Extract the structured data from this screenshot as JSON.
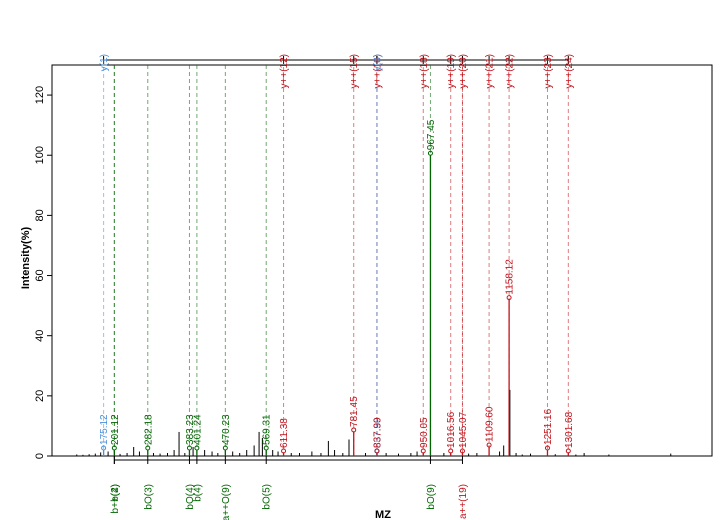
{
  "chart_data": {
    "type": "bar",
    "title": "",
    "xlabel": "MZ",
    "ylabel": "Intensity(%)",
    "xlim": [
      50,
      1650
    ],
    "ylim": [
      0,
      130
    ],
    "yticks": [
      0,
      20,
      40,
      60,
      80,
      100,
      120
    ],
    "grid": false,
    "colors": {
      "y_ion": "#4a90d9",
      "b_ion": "#006400",
      "y_dbl": "#c0141c",
      "unmatched": "#000000"
    },
    "top_annotations": [
      {
        "label": "y(1)",
        "mz": 175.12,
        "color": "#4a90d9"
      },
      {
        "label": "y++(12)",
        "mz": 611.38,
        "color": "#c0141c"
      },
      {
        "label": "y++(15)",
        "mz": 781.45,
        "color": "#c0141c"
      },
      {
        "label": "y++(16)",
        "mz": 837.99,
        "color": "#c0141c"
      },
      {
        "label": "y(3)",
        "mz": 837.3,
        "color": "#4a90d9"
      },
      {
        "label": "y++(18)",
        "mz": 950.05,
        "color": "#c0141c"
      },
      {
        "label": "y++(19)",
        "mz": 1016.56,
        "color": "#c0141c"
      },
      {
        "label": "y++(20)",
        "mz": 1045.07,
        "color": "#c0141c"
      },
      {
        "label": "y++(21)",
        "mz": 1109.6,
        "color": "#c0141c"
      },
      {
        "label": "y++(22)",
        "mz": 1158.12,
        "color": "#c0141c"
      },
      {
        "label": "y++(23)",
        "mz": 1251.16,
        "color": "#c0141c"
      },
      {
        "label": "y++(24)",
        "mz": 1301.68,
        "color": "#c0141c"
      }
    ],
    "bottom_annotations": [
      {
        "label": "b(2)",
        "mz": 201.12,
        "color": "#006400"
      },
      {
        "label": "b++(4)",
        "mz": 201.12,
        "color": "#006400"
      },
      {
        "label": "bO(3)",
        "mz": 282.18,
        "color": "#006400"
      },
      {
        "label": "bO(4)",
        "mz": 383.23,
        "color": "#006400"
      },
      {
        "label": "b(4)",
        "mz": 401.24,
        "color": "#006400"
      },
      {
        "label": "a++O(9)",
        "mz": 470.23,
        "color": "#006400"
      },
      {
        "label": "bO(5)",
        "mz": 569.31,
        "color": "#006400"
      },
      {
        "label": "bO(9)",
        "mz": 967.45,
        "color": "#006400"
      },
      {
        "label": "a++(19)",
        "mz": 1045.07,
        "color": "#c0141c"
      }
    ],
    "peaks_labeled": [
      {
        "mz": 175.12,
        "label": "175.12",
        "intensity": 2.0,
        "color": "#4a90d9"
      },
      {
        "mz": 201.12,
        "label": "201.12",
        "intensity": 2.0,
        "color": "#006400"
      },
      {
        "mz": 282.18,
        "label": "282.18",
        "intensity": 2.0,
        "color": "#006400"
      },
      {
        "mz": 383.23,
        "label": "383.23",
        "intensity": 2.0,
        "color": "#006400"
      },
      {
        "mz": 401.24,
        "label": "401.24",
        "intensity": 2.0,
        "color": "#006400"
      },
      {
        "mz": 470.23,
        "label": "470.23",
        "intensity": 2.0,
        "color": "#006400"
      },
      {
        "mz": 569.31,
        "label": "569.31",
        "intensity": 2.0,
        "color": "#006400"
      },
      {
        "mz": 611.38,
        "label": "611.38",
        "intensity": 1.0,
        "color": "#c0141c"
      },
      {
        "mz": 781.45,
        "label": "781.45",
        "intensity": 8.0,
        "color": "#c0141c"
      },
      {
        "mz": 837.3,
        "label": "837.30",
        "intensity": 1.0,
        "color": "#4a90d9"
      },
      {
        "mz": 837.99,
        "label": "837.99",
        "intensity": 1.0,
        "color": "#c0141c"
      },
      {
        "mz": 950.05,
        "label": "950.05",
        "intensity": 1.0,
        "color": "#c0141c"
      },
      {
        "mz": 967.45,
        "label": "967.45",
        "intensity": 100.0,
        "color": "#006400"
      },
      {
        "mz": 1016.56,
        "label": "1016.56",
        "intensity": 1.0,
        "color": "#c0141c"
      },
      {
        "mz": 1045.07,
        "label": "1045.07",
        "intensity": 1.0,
        "color": "#c0141c"
      },
      {
        "mz": 1109.6,
        "label": "1109.60",
        "intensity": 3.0,
        "color": "#c0141c"
      },
      {
        "mz": 1158.12,
        "label": "1158.12",
        "intensity": 52.0,
        "color": "#c0141c"
      },
      {
        "mz": 1251.16,
        "label": "1251.16",
        "intensity": 2.0,
        "color": "#c0141c"
      },
      {
        "mz": 1301.68,
        "label": "1301.68",
        "intensity": 1.0,
        "color": "#c0141c"
      }
    ],
    "peaks_unlabeled": [
      {
        "mz": 110,
        "intensity": 0.5
      },
      {
        "mz": 125,
        "intensity": 0.4
      },
      {
        "mz": 140,
        "intensity": 0.6
      },
      {
        "mz": 155,
        "intensity": 0.8
      },
      {
        "mz": 168,
        "intensity": 1.2
      },
      {
        "mz": 186,
        "intensity": 1.5
      },
      {
        "mz": 215,
        "intensity": 0.7
      },
      {
        "mz": 232,
        "intensity": 1.0
      },
      {
        "mz": 248,
        "intensity": 3.0
      },
      {
        "mz": 262,
        "intensity": 1.5
      },
      {
        "mz": 296,
        "intensity": 1.0
      },
      {
        "mz": 312,
        "intensity": 0.8
      },
      {
        "mz": 330,
        "intensity": 1.0
      },
      {
        "mz": 346,
        "intensity": 2.0
      },
      {
        "mz": 358,
        "intensity": 8.0
      },
      {
        "mz": 372,
        "intensity": 1.0
      },
      {
        "mz": 392,
        "intensity": 3.0
      },
      {
        "mz": 420,
        "intensity": 2.0
      },
      {
        "mz": 438,
        "intensity": 1.5
      },
      {
        "mz": 452,
        "intensity": 1.0
      },
      {
        "mz": 488,
        "intensity": 1.5
      },
      {
        "mz": 505,
        "intensity": 1.0
      },
      {
        "mz": 522,
        "intensity": 2.0
      },
      {
        "mz": 540,
        "intensity": 3.5
      },
      {
        "mz": 552,
        "intensity": 8.0
      },
      {
        "mz": 560,
        "intensity": 6.0
      },
      {
        "mz": 585,
        "intensity": 2.0
      },
      {
        "mz": 598,
        "intensity": 1.5
      },
      {
        "mz": 630,
        "intensity": 1.0
      },
      {
        "mz": 650,
        "intensity": 1.0
      },
      {
        "mz": 680,
        "intensity": 1.5
      },
      {
        "mz": 702,
        "intensity": 1.0
      },
      {
        "mz": 720,
        "intensity": 5.0
      },
      {
        "mz": 735,
        "intensity": 2.0
      },
      {
        "mz": 755,
        "intensity": 1.0
      },
      {
        "mz": 770,
        "intensity": 5.5
      },
      {
        "mz": 810,
        "intensity": 1.0
      },
      {
        "mz": 860,
        "intensity": 1.0
      },
      {
        "mz": 890,
        "intensity": 0.8
      },
      {
        "mz": 920,
        "intensity": 1.0
      },
      {
        "mz": 935,
        "intensity": 1.5
      },
      {
        "mz": 1000,
        "intensity": 1.0
      },
      {
        "mz": 1060,
        "intensity": 0.8
      },
      {
        "mz": 1080,
        "intensity": 1.0
      },
      {
        "mz": 1135,
        "intensity": 1.5
      },
      {
        "mz": 1145,
        "intensity": 3.5
      },
      {
        "mz": 1160,
        "intensity": 22.0
      },
      {
        "mz": 1175,
        "intensity": 1.0
      },
      {
        "mz": 1190,
        "intensity": 0.5
      },
      {
        "mz": 1210,
        "intensity": 0.8
      },
      {
        "mz": 1270,
        "intensity": 0.6
      },
      {
        "mz": 1320,
        "intensity": 0.5
      },
      {
        "mz": 1340,
        "intensity": 1.0
      },
      {
        "mz": 1400,
        "intensity": 0.5
      },
      {
        "mz": 1550,
        "intensity": 0.8
      }
    ]
  }
}
